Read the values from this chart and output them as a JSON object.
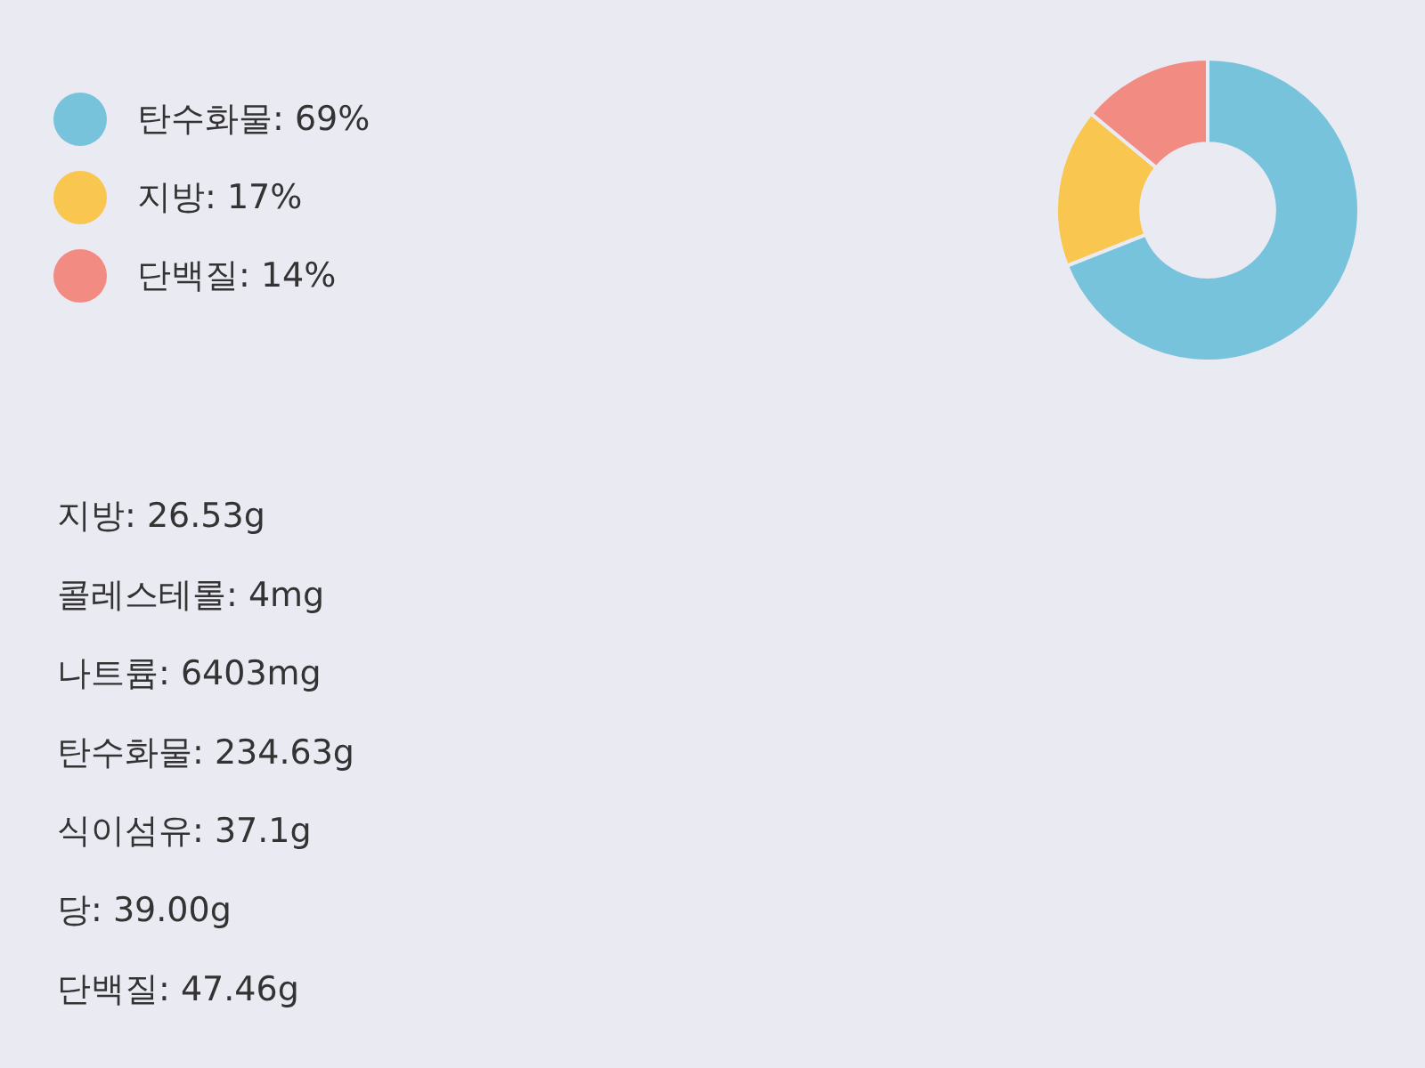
{
  "chart_data": {
    "type": "donut",
    "categories": [
      "탄수화물: 69%",
      "지방: 17%",
      "단백질: 14%"
    ],
    "values": [
      69,
      17,
      14
    ],
    "colors": [
      "#77c3dc",
      "#f9c74f",
      "#f28b82"
    ],
    "legend": "top left",
    "annotations": [
      "지방: 26.53g",
      "콜레스테롤: 4mg",
      "나트륨: 6403mg",
      "탄수화물: 234.63g",
      "식이섬유: 37.1g",
      "당: 39.00g",
      "단백질: 47.46g"
    ]
  }
}
